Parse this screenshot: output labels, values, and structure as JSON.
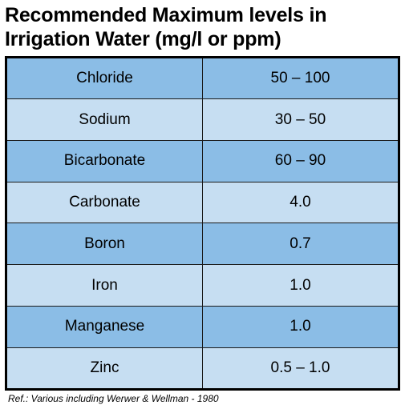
{
  "title": {
    "line1": "Recommended Maximum levels in",
    "line2": "Irrigation Water (mg/l or ppm)"
  },
  "table": {
    "rows": [
      {
        "element": "Chloride",
        "level": "50 – 100"
      },
      {
        "element": "Sodium",
        "level": "30 – 50"
      },
      {
        "element": "Bicarbonate",
        "level": "60 – 90"
      },
      {
        "element": "Carbonate",
        "level": "4.0"
      },
      {
        "element": "Boron",
        "level": "0.7"
      },
      {
        "element": "Iron",
        "level": "1.0"
      },
      {
        "element": "Manganese",
        "level": "1.0"
      },
      {
        "element": "Zinc",
        "level": "0.5 – 1.0"
      }
    ]
  },
  "reference": "Ref.: Various including Werwer & Wellman - 1980",
  "colors": {
    "row_dark": "#8bbde6",
    "row_light": "#c6def2",
    "border": "#000000"
  }
}
